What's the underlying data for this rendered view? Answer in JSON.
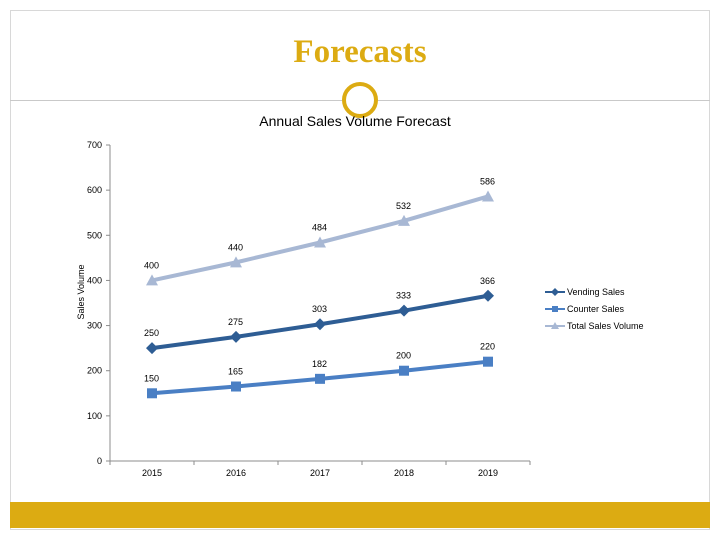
{
  "slide": {
    "title": "Forecasts"
  },
  "colors": {
    "accent": "#dcab12",
    "vending": "#2e5d94",
    "counter": "#4a7fc4",
    "total": "#a8b8d4"
  },
  "chart_data": {
    "type": "line",
    "title": "Annual Sales Volume Forecast",
    "xlabel": "",
    "ylabel": "Sales Volume",
    "ylim": [
      0,
      700
    ],
    "yticks": [
      0,
      100,
      200,
      300,
      400,
      500,
      600,
      700
    ],
    "categories": [
      "2015",
      "2016",
      "2017",
      "2018",
      "2019"
    ],
    "grid": false,
    "legend_position": "right",
    "series": [
      {
        "name": "Vending Sales",
        "marker": "diamond",
        "values": [
          250,
          275,
          303,
          333,
          366
        ]
      },
      {
        "name": "Counter Sales",
        "marker": "square",
        "values": [
          150,
          165,
          182,
          200,
          220
        ]
      },
      {
        "name": "Total Sales Volume",
        "marker": "triangle",
        "values": [
          400,
          440,
          484,
          532,
          586
        ]
      }
    ]
  }
}
